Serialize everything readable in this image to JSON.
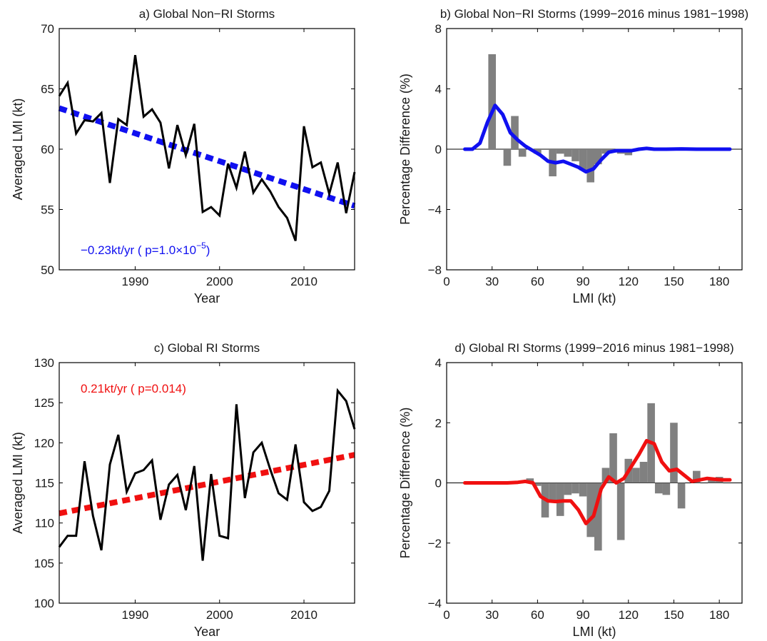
{
  "chart_data": [
    {
      "type": "line",
      "panel": "a",
      "title": "a) Global Non−RI Storms",
      "xlabel": "Year",
      "ylabel": "Averaged LMI (kt)",
      "xlim": [
        1981,
        2016
      ],
      "ylim": [
        50,
        70
      ],
      "xticks": [
        1990,
        2000,
        2010
      ],
      "yticks": [
        50,
        55,
        60,
        65,
        70
      ],
      "x": [
        1981,
        1982,
        1983,
        1984,
        1985,
        1986,
        1987,
        1988,
        1989,
        1990,
        1991,
        1992,
        1993,
        1994,
        1995,
        1996,
        1997,
        1998,
        1999,
        2000,
        2001,
        2002,
        2003,
        2004,
        2005,
        2006,
        2007,
        2008,
        2009,
        2010,
        2011,
        2012,
        2013,
        2014,
        2015,
        2016
      ],
      "y": [
        64.4,
        65.5,
        61.3,
        62.4,
        62.3,
        63.0,
        57.2,
        62.5,
        62.0,
        67.8,
        62.7,
        63.3,
        62.2,
        58.4,
        62.0,
        59.5,
        62.1,
        54.8,
        55.2,
        54.5,
        58.8,
        56.8,
        59.8,
        56.4,
        57.5,
        56.5,
        55.2,
        54.3,
        52.4,
        61.9,
        58.5,
        58.9,
        56.3,
        58.9,
        54.7,
        58.1
      ],
      "series_color": "#000000",
      "trend": {
        "start": [
          1981,
          63.4
        ],
        "end": [
          2016,
          55.3
        ],
        "color": "#1010f0",
        "style": "dotted"
      },
      "annotation": {
        "prefix": "−0.23kt/yr ( p=1.0×10",
        "superscript": "−5",
        "suffix": ")",
        "color": "#1010f0"
      }
    },
    {
      "type": "bar",
      "panel": "b",
      "title": "b) Global Non−RI Storms (1999−2016 minus 1981−1998)",
      "xlabel": "LMI (kt)",
      "ylabel": "Percentage Difference (%)",
      "xlim": [
        0,
        195
      ],
      "ylim": [
        -8,
        8
      ],
      "xticks": [
        0,
        30,
        60,
        90,
        120,
        150,
        180
      ],
      "yticks": [
        -8,
        -4,
        0,
        4,
        8
      ],
      "bar_color": "#808080",
      "bar_x": [
        15,
        20,
        25,
        30,
        35,
        40,
        45,
        50,
        55,
        60,
        65,
        70,
        75,
        80,
        85,
        90,
        95,
        100,
        105,
        110,
        115,
        120,
        125,
        130,
        135,
        140,
        145,
        150,
        155,
        160,
        165,
        170,
        175,
        180,
        185
      ],
      "bar_values": [
        0,
        0,
        0,
        6.3,
        0,
        -1.1,
        2.2,
        -0.5,
        0,
        -0.3,
        0,
        -1.8,
        -0.3,
        -0.5,
        -0.8,
        -1.4,
        -2.2,
        -1.0,
        -0.3,
        -0.1,
        -0.3,
        -0.4,
        0,
        0,
        0,
        0,
        0,
        0,
        0,
        0,
        0,
        0,
        0,
        0,
        0
      ],
      "line_color": "#1010f0",
      "line_x": [
        12,
        17,
        22,
        27,
        32,
        37,
        42,
        47,
        52,
        57,
        62,
        67,
        72,
        77,
        82,
        87,
        92,
        97,
        102,
        107,
        112,
        117,
        122,
        127,
        132,
        137,
        145,
        155,
        165,
        175,
        187
      ],
      "line_y": [
        0,
        0,
        0.4,
        1.8,
        2.9,
        2.3,
        1.1,
        0.6,
        0.2,
        -0.1,
        -0.4,
        -0.8,
        -0.9,
        -0.8,
        -1.0,
        -1.2,
        -1.5,
        -1.3,
        -0.7,
        -0.2,
        -0.1,
        -0.1,
        -0.1,
        0,
        0.05,
        0,
        0,
        0.02,
        0,
        0,
        0
      ]
    },
    {
      "type": "line",
      "panel": "c",
      "title": "c) Global RI Storms",
      "xlabel": "Year",
      "ylabel": "Averaged LMI (kt)",
      "xlim": [
        1981,
        2016
      ],
      "ylim": [
        100,
        130
      ],
      "xticks": [
        1990,
        2000,
        2010
      ],
      "yticks": [
        100,
        105,
        110,
        115,
        120,
        125,
        130
      ],
      "x": [
        1981,
        1982,
        1983,
        1984,
        1985,
        1986,
        1987,
        1988,
        1989,
        1990,
        1991,
        1992,
        1993,
        1994,
        1995,
        1996,
        1997,
        1998,
        1999,
        2000,
        2001,
        2002,
        2003,
        2004,
        2005,
        2006,
        2007,
        2008,
        2009,
        2010,
        2011,
        2012,
        2013,
        2014,
        2015,
        2016
      ],
      "y": [
        107.0,
        108.4,
        108.4,
        117.7,
        110.9,
        106.6,
        117.3,
        121.0,
        113.9,
        116.2,
        116.6,
        117.8,
        110.4,
        114.8,
        116.0,
        111.6,
        117.1,
        105.3,
        116.1,
        108.4,
        108.1,
        124.8,
        113.1,
        118.8,
        120.0,
        116.7,
        113.7,
        112.9,
        119.8,
        112.6,
        111.5,
        112.0,
        114.0,
        126.5,
        125.2,
        121.7
      ],
      "series_color": "#000000",
      "trend": {
        "start": [
          1981,
          111.2
        ],
        "end": [
          2016,
          118.5
        ],
        "color": "#f01010",
        "style": "dotted"
      },
      "annotation": {
        "text": "0.21kt/yr ( p=0.014)",
        "color": "#f01010"
      }
    },
    {
      "type": "bar",
      "panel": "d",
      "title": "d) Global RI Storms (1999−2016 minus 1981−1998)",
      "xlabel": "LMI (kt)",
      "ylabel": "Percentage Difference (%)",
      "xlim": [
        0,
        195
      ],
      "ylim": [
        -4,
        4
      ],
      "xticks": [
        0,
        30,
        60,
        90,
        120,
        150,
        180
      ],
      "yticks": [
        -4,
        -2,
        0,
        2,
        4
      ],
      "bar_color": "#808080",
      "bar_x": [
        50,
        55,
        60,
        65,
        70,
        75,
        80,
        85,
        90,
        95,
        100,
        105,
        110,
        115,
        120,
        125,
        130,
        135,
        140,
        145,
        150,
        155,
        160,
        165,
        170,
        175,
        180,
        185
      ],
      "bar_values": [
        0,
        0.15,
        -0.1,
        -1.15,
        -0.6,
        -1.1,
        -0.4,
        -0.35,
        -0.45,
        -1.8,
        -2.25,
        0.5,
        1.65,
        -1.9,
        0.8,
        0.5,
        0.7,
        2.65,
        -0.35,
        -0.4,
        2.0,
        -0.85,
        0,
        0.4,
        0,
        0.1,
        0.2,
        0
      ],
      "line_color": "#f01010",
      "line_x": [
        12,
        20,
        30,
        40,
        47,
        52,
        57,
        62,
        67,
        72,
        77,
        82,
        87,
        92,
        97,
        102,
        107,
        112,
        117,
        122,
        127,
        132,
        137,
        142,
        147,
        152,
        157,
        162,
        167,
        172,
        177,
        182,
        187
      ],
      "line_y": [
        0,
        0,
        0,
        0,
        0.02,
        0.05,
        0,
        -0.45,
        -0.6,
        -0.62,
        -0.6,
        -0.6,
        -0.9,
        -1.35,
        -1.1,
        -0.2,
        0.2,
        0,
        0.15,
        0.55,
        0.95,
        1.4,
        1.3,
        0.7,
        0.4,
        0.45,
        0.25,
        0.05,
        0.1,
        0.15,
        0.12,
        0.1,
        0.1
      ]
    }
  ]
}
